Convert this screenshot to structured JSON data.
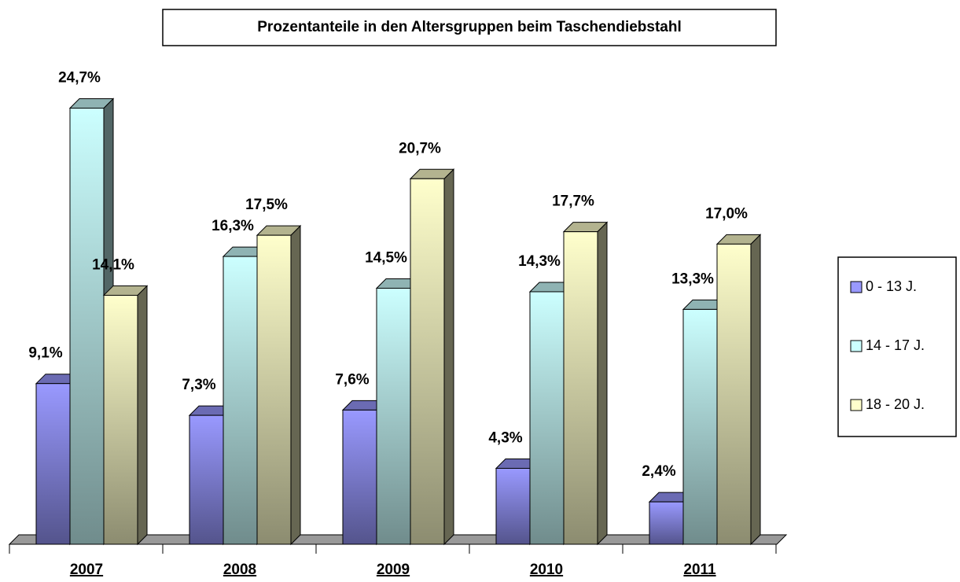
{
  "chart_data": {
    "type": "bar3d",
    "title": "Prozentanteile in den Altersgruppen beim Taschendiebstahl",
    "categories": [
      "2007",
      "2008",
      "2009",
      "2010",
      "2011"
    ],
    "series": [
      {
        "name": "0 - 13 J.",
        "color": "#9999ff",
        "values": [
          9.1,
          7.3,
          7.6,
          4.3,
          2.4
        ],
        "value_labels": [
          "9,1%",
          "7,3%",
          "7,6%",
          "4,3%",
          "2,4%"
        ]
      },
      {
        "name": "14 - 17 J.",
        "color": "#ccffff",
        "values": [
          24.7,
          16.3,
          14.5,
          14.3,
          13.3
        ],
        "value_labels": [
          "24,7%",
          "16,3%",
          "14,5%",
          "14,3%",
          "13,3%"
        ]
      },
      {
        "name": "18 - 20 J.",
        "color": "#ffffcc",
        "values": [
          14.1,
          17.5,
          20.7,
          17.7,
          17.0
        ],
        "value_labels": [
          "14,1%",
          "17,5%",
          "20,7%",
          "17,7%",
          "17,0%"
        ]
      }
    ],
    "legend": "right"
  }
}
